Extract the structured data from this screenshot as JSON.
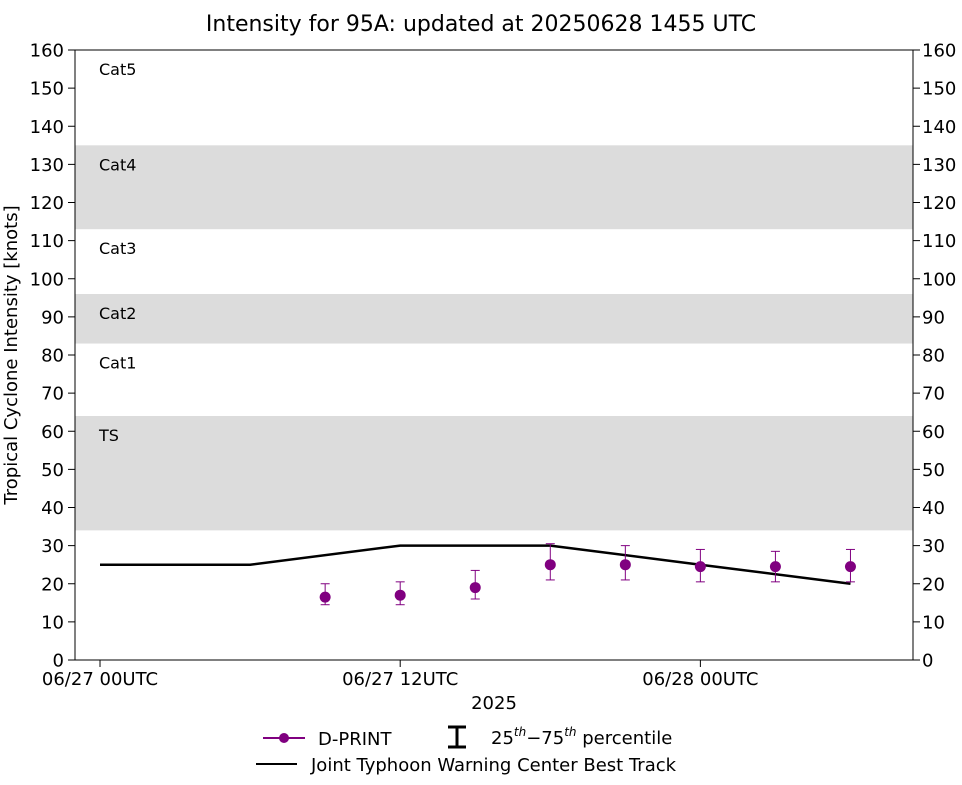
{
  "chart_data": {
    "type": "line",
    "title": "Intensity for 95A: updated at 20250628 1455 UTC",
    "xlabel": "2025",
    "ylabel": "Tropical Cyclone Intensity [knots]",
    "ylim": [
      0,
      160
    ],
    "xlim_hours": [
      -1,
      32.5
    ],
    "y_ticks": [
      0,
      10,
      20,
      30,
      40,
      50,
      60,
      70,
      80,
      90,
      100,
      110,
      120,
      130,
      140,
      150,
      160
    ],
    "x_ticks": [
      {
        "hour": 0,
        "label": "06/27 00UTC"
      },
      {
        "hour": 12,
        "label": "06/27 12UTC"
      },
      {
        "hour": 24,
        "label": "06/28 00UTC"
      }
    ],
    "category_bands": [
      {
        "label": "TS",
        "low": 34,
        "high": 64,
        "shaded": true
      },
      {
        "label": "Cat1",
        "low": 64,
        "high": 83,
        "shaded": false
      },
      {
        "label": "Cat2",
        "low": 83,
        "high": 96,
        "shaded": true
      },
      {
        "label": "Cat3",
        "low": 96,
        "high": 113,
        "shaded": false
      },
      {
        "label": "Cat4",
        "low": 113,
        "high": 135,
        "shaded": true
      },
      {
        "label": "Cat5",
        "low": 135,
        "high": 160,
        "shaded": false
      }
    ],
    "series": [
      {
        "name": "Joint Typhoon Warning Center Best Track",
        "color": "#000000",
        "points": [
          {
            "hour": 0,
            "value": 25
          },
          {
            "hour": 6,
            "value": 25
          },
          {
            "hour": 12,
            "value": 30
          },
          {
            "hour": 18,
            "value": 30
          },
          {
            "hour": 24,
            "value": 25
          },
          {
            "hour": 30,
            "value": 20
          }
        ]
      },
      {
        "name": "D-PRINT",
        "color": "#800080",
        "points": [
          {
            "hour": 9,
            "value": 16.5,
            "p25": 14.5,
            "p75": 20
          },
          {
            "hour": 12,
            "value": 17,
            "p25": 14.5,
            "p75": 20.5
          },
          {
            "hour": 15,
            "value": 19,
            "p25": 16,
            "p75": 23.5
          },
          {
            "hour": 18,
            "value": 25,
            "p25": 21,
            "p75": 30.5
          },
          {
            "hour": 21,
            "value": 25,
            "p25": 21,
            "p75": 30
          },
          {
            "hour": 24,
            "value": 24.5,
            "p25": 20.5,
            "p75": 29
          },
          {
            "hour": 27,
            "value": 24.5,
            "p25": 20.5,
            "p75": 28.5
          },
          {
            "hour": 30,
            "value": 24.5,
            "p25": 20.5,
            "p75": 29
          }
        ]
      }
    ],
    "legend": {
      "position": "bottom-center",
      "dprint_label": "D-PRINT",
      "percentile_pre": "25",
      "percentile_sup1": "th",
      "percentile_mid": "−75",
      "percentile_sup2": "th",
      "percentile_post": " percentile",
      "best_track_label": "Joint Typhoon Warning Center Best Track"
    },
    "colors": {
      "band": "#dcdcdc",
      "dprint": "#800080",
      "best_track": "#000000"
    }
  }
}
